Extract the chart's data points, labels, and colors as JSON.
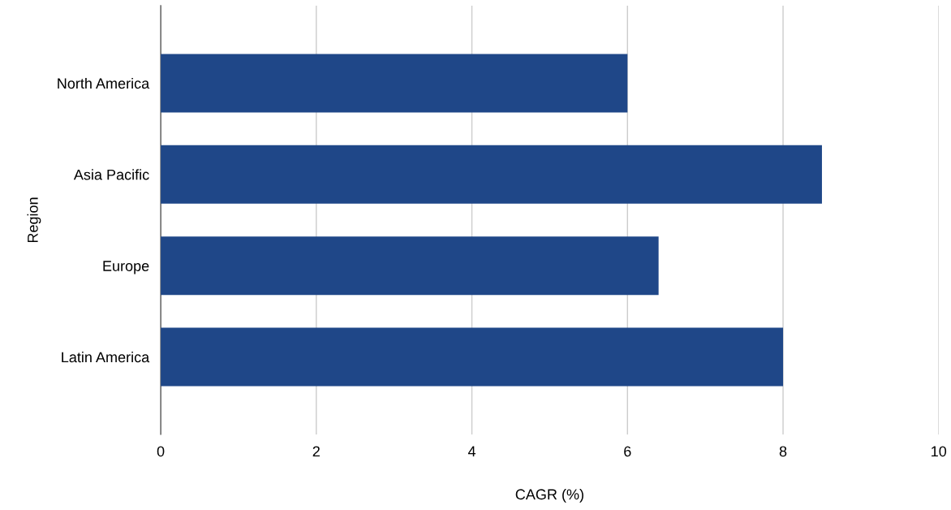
{
  "chart_data": {
    "type": "bar",
    "orientation": "horizontal",
    "xlabel": "CAGR (%)",
    "ylabel": "Region",
    "categories": [
      "North America",
      "Asia Pacific",
      "Europe",
      "Latin America"
    ],
    "values": [
      6.0,
      8.5,
      6.4,
      8.0
    ],
    "color": "#1f4788",
    "xlim": [
      0,
      10
    ],
    "xticks": [
      0,
      2,
      4,
      6,
      8,
      10
    ],
    "grid": "x"
  }
}
